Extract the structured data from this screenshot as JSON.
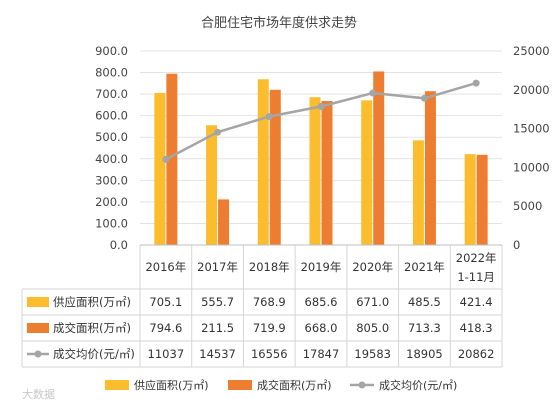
{
  "chart_data": {
    "type": "bar",
    "title": "合肥住宅市场年度供求走势",
    "categories": [
      "2016年",
      "2017年",
      "2018年",
      "2019年",
      "2020年",
      "2021年",
      "2022年\n1-11月"
    ],
    "category_lines": [
      [
        "2016年"
      ],
      [
        "2017年"
      ],
      [
        "2018年"
      ],
      [
        "2019年"
      ],
      [
        "2020年"
      ],
      [
        "2021年"
      ],
      [
        "2022年",
        "1-11月"
      ]
    ],
    "series": [
      {
        "name": "供应面积(万㎡)",
        "type": "bar",
        "axis": "left",
        "color": "#FBBD2E",
        "values": [
          705.1,
          555.7,
          768.9,
          685.6,
          671.0,
          485.5,
          421.4
        ],
        "labels": [
          "705.1",
          "555.7",
          "768.9",
          "685.6",
          "671.0",
          "485.5",
          "421.4"
        ]
      },
      {
        "name": "成交面积(万㎡)",
        "type": "bar",
        "axis": "left",
        "color": "#ED7D31",
        "values": [
          794.6,
          211.5,
          719.9,
          668.0,
          805.0,
          713.3,
          418.3
        ],
        "labels": [
          "794.6",
          "211.5",
          "719.9",
          "668.0",
          "805.0",
          "713.3",
          "418.3"
        ]
      },
      {
        "name": "成交均价(元/㎡)",
        "type": "line",
        "axis": "right",
        "color": "#A5A5A5",
        "values": [
          11037,
          14537,
          16556,
          17847,
          19583,
          18905,
          20862
        ],
        "labels": [
          "11037",
          "14537",
          "16556",
          "17847",
          "19583",
          "18905",
          "20862"
        ]
      }
    ],
    "y_left": {
      "min": 0,
      "max": 900,
      "step": 100,
      "ticks": [
        "0.0",
        "100.0",
        "200.0",
        "300.0",
        "400.0",
        "500.0",
        "600.0",
        "700.0",
        "800.0",
        "900.0"
      ]
    },
    "y_right": {
      "min": 0,
      "max": 25000,
      "step": 5000,
      "ticks": [
        "0",
        "5000",
        "10000",
        "15000",
        "20000",
        "25000"
      ]
    },
    "grid": true,
    "legend_position": "bottom",
    "data_table": true
  },
  "watermark": "大数据"
}
